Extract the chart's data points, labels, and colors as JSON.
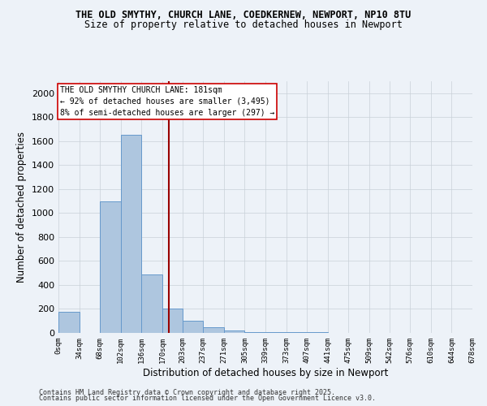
{
  "title_line1": "THE OLD SMYTHY, CHURCH LANE, COEDKERNEW, NEWPORT, NP10 8TU",
  "title_line2": "Size of property relative to detached houses in Newport",
  "xlabel": "Distribution of detached houses by size in Newport",
  "ylabel": "Number of detached properties",
  "bar_edges": [
    0,
    34,
    68,
    102,
    136,
    170,
    203,
    237,
    271,
    305,
    339,
    373,
    407,
    441,
    475,
    509,
    542,
    576,
    610,
    644,
    678
  ],
  "bar_heights": [
    175,
    0,
    1100,
    1650,
    490,
    200,
    100,
    45,
    20,
    10,
    5,
    10,
    5,
    0,
    0,
    0,
    0,
    0,
    0,
    0
  ],
  "bar_color": "#aec6df",
  "bar_edge_color": "#6699cc",
  "grid_color": "#c8d0d8",
  "bg_color": "#edf2f8",
  "vline_x": 181,
  "vline_color": "#990000",
  "annotation_text": "THE OLD SMYTHY CHURCH LANE: 181sqm\n← 92% of detached houses are smaller (3,495)\n8% of semi-detached houses are larger (297) →",
  "annotation_box_color": "#ffffff",
  "annotation_border_color": "#cc0000",
  "ylim": [
    0,
    2100
  ],
  "yticks": [
    0,
    200,
    400,
    600,
    800,
    1000,
    1200,
    1400,
    1600,
    1800,
    2000
  ],
  "footer_line1": "Contains HM Land Registry data © Crown copyright and database right 2025.",
  "footer_line2": "Contains public sector information licensed under the Open Government Licence v3.0.",
  "tick_labels": [
    "0sqm",
    "34sqm",
    "68sqm",
    "102sqm",
    "136sqm",
    "170sqm",
    "203sqm",
    "237sqm",
    "271sqm",
    "305sqm",
    "339sqm",
    "373sqm",
    "407sqm",
    "441sqm",
    "475sqm",
    "509sqm",
    "542sqm",
    "576sqm",
    "610sqm",
    "644sqm",
    "678sqm"
  ]
}
